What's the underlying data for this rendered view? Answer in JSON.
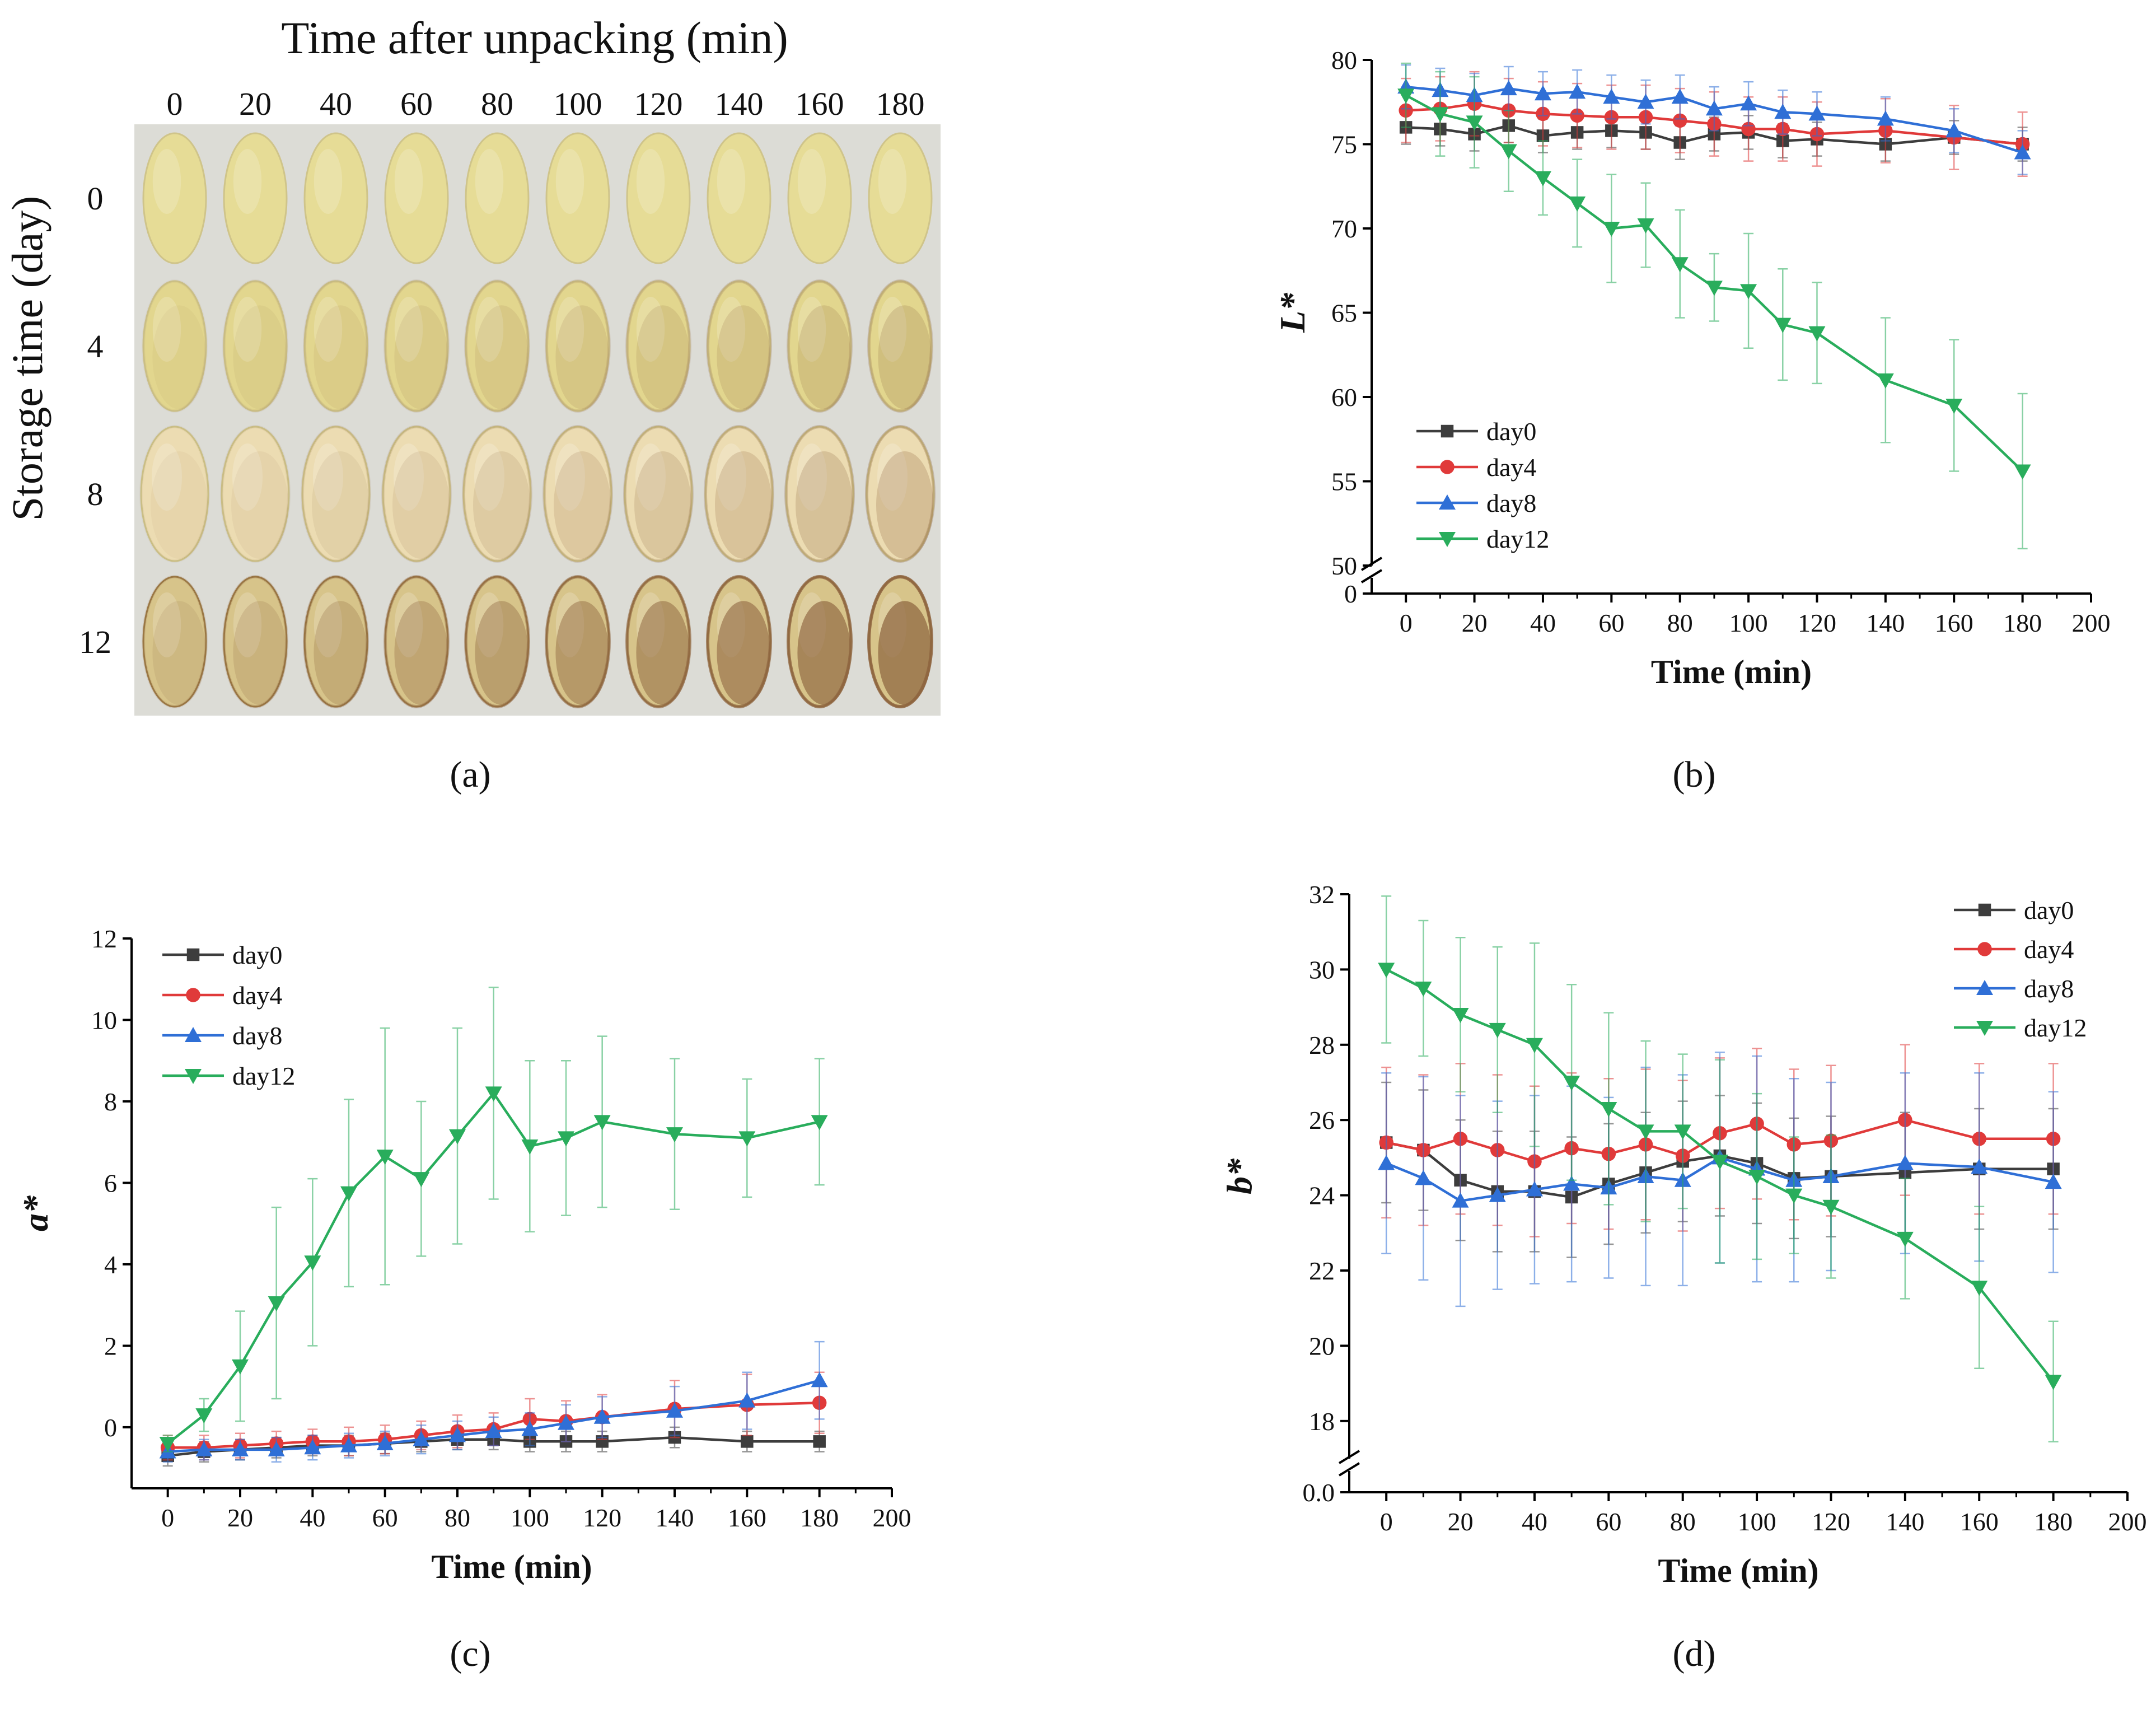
{
  "figure": {
    "panel_labels": [
      "(a)",
      "(b)",
      "(c)",
      "(d)"
    ]
  },
  "photo_panel": {
    "title": "Time after unpacking (min)",
    "y_title": "Storage time (day)",
    "columns": [
      "0",
      "20",
      "40",
      "60",
      "80",
      "100",
      "120",
      "140",
      "160",
      "180"
    ],
    "rows": [
      "0",
      "4",
      "8",
      "12"
    ],
    "colors": {
      "background": "#dcdcd6",
      "day0": "#e6dc96",
      "day4": "#e2d68e",
      "day8": "#ecdcb2",
      "day12": "#d7c48a",
      "browning": "#8e6540"
    }
  },
  "series_style": {
    "day0": {
      "color": "#3d3d3d",
      "marker": "square"
    },
    "day4": {
      "color": "#e03a3a",
      "marker": "circle"
    },
    "day8": {
      "color": "#2f6fd6",
      "marker": "triangle-up"
    },
    "day12": {
      "color": "#29ad5c",
      "marker": "triangle-down"
    }
  },
  "chart_data": [
    {
      "id": "b",
      "type": "line",
      "panel": "(b)",
      "title": "",
      "xlabel": "Time (min)",
      "ylabel": "L*",
      "xlim": [
        -10,
        200
      ],
      "ylim": [
        50,
        80
      ],
      "xticks": [
        "0",
        "20",
        "40",
        "60",
        "80",
        "100",
        "120",
        "140",
        "160",
        "180",
        "200"
      ],
      "yticks": [
        "50",
        "55",
        "60",
        "65",
        "70",
        "75",
        "80"
      ],
      "axis_break": {
        "low_tick": "0"
      },
      "legend": "bottom-left",
      "x": [
        0,
        10,
        20,
        30,
        40,
        50,
        60,
        70,
        80,
        90,
        100,
        110,
        120,
        140,
        160,
        180
      ],
      "series": [
        {
          "name": "day0",
          "values": [
            76.0,
            75.9,
            75.6,
            76.1,
            75.5,
            75.7,
            75.8,
            75.7,
            75.1,
            75.6,
            75.7,
            75.2,
            75.3,
            75.0,
            75.4,
            75.0
          ],
          "errors": [
            1.0,
            1.0,
            1.0,
            1.0,
            1.0,
            1.0,
            1.0,
            1.0,
            1.0,
            1.0,
            1.0,
            1.0,
            1.0,
            1.0,
            1.0,
            1.0
          ]
        },
        {
          "name": "day4",
          "values": [
            77.0,
            77.1,
            77.4,
            77.0,
            76.8,
            76.7,
            76.6,
            76.6,
            76.4,
            76.2,
            75.9,
            75.9,
            75.6,
            75.8,
            75.4,
            75.0
          ],
          "errors": [
            1.9,
            1.9,
            1.9,
            1.9,
            1.9,
            1.9,
            1.9,
            1.9,
            1.9,
            1.9,
            1.9,
            1.9,
            1.9,
            1.9,
            1.9,
            1.9
          ]
        },
        {
          "name": "day8",
          "values": [
            78.4,
            78.2,
            77.9,
            78.3,
            78.0,
            78.1,
            77.8,
            77.5,
            77.8,
            77.1,
            77.4,
            76.9,
            76.8,
            76.5,
            75.8,
            74.5
          ],
          "errors": [
            1.3,
            1.3,
            1.3,
            1.3,
            1.3,
            1.3,
            1.3,
            1.3,
            1.3,
            1.3,
            1.3,
            1.3,
            1.3,
            1.3,
            1.3,
            1.3
          ]
        },
        {
          "name": "day12",
          "values": [
            77.9,
            76.8,
            76.3,
            74.6,
            73.0,
            71.5,
            70.0,
            70.2,
            67.9,
            66.5,
            66.3,
            64.3,
            63.8,
            61.0,
            59.5,
            55.6
          ],
          "errors": [
            1.9,
            2.5,
            2.7,
            2.4,
            2.2,
            2.6,
            3.2,
            2.5,
            3.2,
            2.0,
            3.4,
            3.3,
            3.0,
            3.7,
            3.9,
            4.6
          ]
        }
      ]
    },
    {
      "id": "c",
      "type": "line",
      "panel": "(c)",
      "title": "",
      "xlabel": "Time (min)",
      "ylabel": "a*",
      "xlim": [
        -10,
        200
      ],
      "ylim": [
        -1.5,
        12
      ],
      "xticks": [
        "0",
        "20",
        "40",
        "60",
        "80",
        "100",
        "120",
        "140",
        "160",
        "180",
        "200"
      ],
      "yticks": [
        "0",
        "2",
        "4",
        "6",
        "8",
        "10",
        "12"
      ],
      "legend": "top-left",
      "x": [
        0,
        10,
        20,
        30,
        40,
        50,
        60,
        70,
        80,
        90,
        100,
        110,
        120,
        140,
        160,
        180
      ],
      "series": [
        {
          "name": "day0",
          "values": [
            -0.7,
            -0.6,
            -0.55,
            -0.5,
            -0.45,
            -0.45,
            -0.4,
            -0.35,
            -0.3,
            -0.3,
            -0.35,
            -0.35,
            -0.35,
            -0.25,
            -0.35,
            -0.35
          ],
          "errors": [
            0.25,
            0.25,
            0.25,
            0.25,
            0.25,
            0.25,
            0.25,
            0.25,
            0.25,
            0.25,
            0.25,
            0.25,
            0.25,
            0.25,
            0.25,
            0.25
          ]
        },
        {
          "name": "day4",
          "values": [
            -0.5,
            -0.5,
            -0.45,
            -0.4,
            -0.35,
            -0.35,
            -0.3,
            -0.2,
            -0.1,
            -0.05,
            0.2,
            0.15,
            0.25,
            0.45,
            0.55,
            0.6
          ],
          "errors": [
            0.3,
            0.3,
            0.3,
            0.3,
            0.3,
            0.35,
            0.35,
            0.35,
            0.4,
            0.4,
            0.5,
            0.5,
            0.55,
            0.7,
            0.75,
            0.75
          ]
        },
        {
          "name": "day8",
          "values": [
            -0.6,
            -0.55,
            -0.55,
            -0.55,
            -0.5,
            -0.45,
            -0.4,
            -0.3,
            -0.2,
            -0.1,
            -0.05,
            0.1,
            0.25,
            0.4,
            0.65,
            1.15
          ],
          "errors": [
            0.25,
            0.25,
            0.25,
            0.3,
            0.3,
            0.3,
            0.3,
            0.35,
            0.35,
            0.35,
            0.4,
            0.45,
            0.5,
            0.6,
            0.7,
            0.95
          ]
        },
        {
          "name": "day12",
          "values": [
            -0.4,
            0.3,
            1.5,
            3.05,
            4.05,
            5.75,
            6.65,
            6.1,
            7.15,
            8.2,
            6.9,
            7.1,
            7.5,
            7.2,
            7.1,
            7.5
          ],
          "errors": [
            0.2,
            0.4,
            1.35,
            2.35,
            2.05,
            2.3,
            3.15,
            1.9,
            2.65,
            2.6,
            2.1,
            1.9,
            2.1,
            1.85,
            1.45,
            1.55
          ]
        }
      ]
    },
    {
      "id": "d",
      "type": "line",
      "panel": "(d)",
      "title": "",
      "xlabel": "Time (min)",
      "ylabel": "b*",
      "xlim": [
        -10,
        200
      ],
      "ylim": [
        17,
        32
      ],
      "xticks": [
        "0",
        "20",
        "40",
        "60",
        "80",
        "100",
        "120",
        "140",
        "160",
        "180",
        "200"
      ],
      "yticks": [
        "18",
        "20",
        "22",
        "24",
        "26",
        "28",
        "30",
        "32"
      ],
      "axis_break": {
        "low_tick": "0.0"
      },
      "legend": "top-right",
      "x": [
        0,
        10,
        20,
        30,
        40,
        50,
        60,
        70,
        80,
        90,
        100,
        110,
        120,
        140,
        160,
        180
      ],
      "series": [
        {
          "name": "day0",
          "values": [
            25.4,
            25.2,
            24.4,
            24.1,
            24.1,
            23.95,
            24.3,
            24.6,
            24.9,
            25.05,
            24.85,
            24.45,
            24.5,
            24.6,
            24.7,
            24.7
          ],
          "errors": [
            1.6,
            1.6,
            1.6,
            1.6,
            1.6,
            1.6,
            1.6,
            1.6,
            1.6,
            1.6,
            1.6,
            1.6,
            1.6,
            1.6,
            1.6,
            1.6
          ]
        },
        {
          "name": "day4",
          "values": [
            25.4,
            25.2,
            25.5,
            25.2,
            24.9,
            25.25,
            25.1,
            25.35,
            25.05,
            25.65,
            25.9,
            25.35,
            25.45,
            26.0,
            25.5,
            25.5
          ],
          "errors": [
            2.0,
            2.0,
            2.0,
            2.0,
            2.0,
            2.0,
            2.0,
            2.0,
            2.0,
            2.0,
            2.0,
            2.0,
            2.0,
            2.0,
            2.0,
            2.0
          ]
        },
        {
          "name": "day8",
          "values": [
            24.85,
            24.45,
            23.85,
            24.0,
            24.15,
            24.3,
            24.2,
            24.5,
            24.4,
            25.0,
            24.7,
            24.4,
            24.5,
            24.85,
            24.75,
            24.35
          ],
          "errors": [
            2.4,
            2.7,
            2.8,
            2.5,
            2.5,
            2.6,
            2.4,
            2.9,
            2.8,
            2.8,
            3.0,
            2.7,
            2.5,
            2.4,
            2.5,
            2.4
          ]
        },
        {
          "name": "day12",
          "values": [
            30.0,
            29.5,
            28.8,
            28.4,
            28.0,
            27.0,
            26.3,
            25.7,
            25.7,
            24.9,
            24.5,
            24.0,
            23.7,
            22.85,
            21.55,
            19.05
          ],
          "errors": [
            1.95,
            1.8,
            2.05,
            2.2,
            2.7,
            2.6,
            2.55,
            2.4,
            2.05,
            2.7,
            2.2,
            1.55,
            1.9,
            1.6,
            2.15,
            1.6
          ]
        }
      ]
    }
  ]
}
